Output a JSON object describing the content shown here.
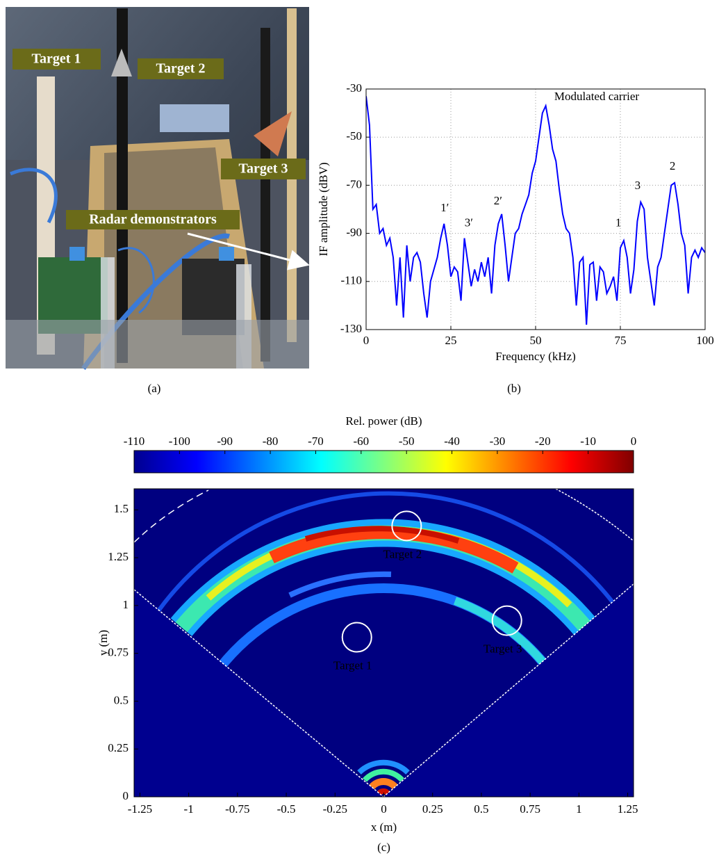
{
  "photo": {
    "labels": [
      "Target 1",
      "Target 2",
      "Target 3",
      "Radar demonstrators"
    ],
    "caption": "(a)"
  },
  "chart_data": [
    {
      "type": "line",
      "caption": "(b)",
      "xlabel": "Frequency (kHz)",
      "ylabel": "IF amplitude (dBV)",
      "x": [
        0,
        1,
        2,
        3,
        4,
        5,
        6,
        7,
        8,
        9,
        10,
        11,
        12,
        13,
        14,
        15,
        16,
        17,
        18,
        19,
        20,
        21,
        22,
        23,
        24,
        25,
        26,
        27,
        28,
        29,
        30,
        31,
        32,
        33,
        34,
        35,
        36,
        37,
        38,
        39,
        40,
        41,
        42,
        43,
        44,
        45,
        46,
        47,
        48,
        49,
        50,
        51,
        52,
        53,
        54,
        55,
        56,
        57,
        58,
        59,
        60,
        61,
        62,
        63,
        64,
        65,
        66,
        67,
        68,
        69,
        70,
        71,
        72,
        73,
        74,
        75,
        76,
        77,
        78,
        79,
        80,
        81,
        82,
        83,
        84,
        85,
        86,
        87,
        88,
        89,
        90,
        91,
        92,
        93,
        94,
        95,
        96,
        97,
        98,
        99,
        100
      ],
      "series": [
        {
          "color": "#0000ff",
          "values": [
            -33,
            -45,
            -80,
            -78,
            -90,
            -88,
            -95,
            -92,
            -100,
            -120,
            -100,
            -125,
            -95,
            -110,
            -100,
            -98,
            -102,
            -115,
            -125,
            -110,
            -105,
            -100,
            -92,
            -86,
            -95,
            -108,
            -104,
            -106,
            -118,
            -92,
            -102,
            -112,
            -105,
            -110,
            -102,
            -108,
            -100,
            -115,
            -95,
            -86,
            -82,
            -95,
            -110,
            -100,
            -90,
            -88,
            -82,
            -78,
            -74,
            -65,
            -60,
            -50,
            -40,
            -37,
            -45,
            -55,
            -60,
            -72,
            -82,
            -88,
            -90,
            -100,
            -120,
            -102,
            -100,
            -128,
            -103,
            -102,
            -118,
            -104,
            -106,
            -115,
            -112,
            -108,
            -118,
            -96,
            -93,
            -100,
            -115,
            -105,
            -85,
            -77,
            -80,
            -100,
            -110,
            -120,
            -104,
            -100,
            -90,
            -80,
            -70,
            -69,
            -78,
            -90,
            -95,
            -115,
            -100,
            -97,
            -100,
            -96,
            -98
          ]
        }
      ],
      "xlim": [
        0,
        100
      ],
      "xticks": [
        0,
        25,
        50,
        75,
        100
      ],
      "ylim": [
        -130,
        -30
      ],
      "yticks": [
        -30,
        -50,
        -70,
        -90,
        -110,
        -130
      ],
      "grid": true,
      "annotations": [
        {
          "text": "Modulated carrier",
          "x": 55.5,
          "y": -33.5
        },
        {
          "text": "1′",
          "x": 23.2,
          "y": -79.7
        },
        {
          "text": "3′",
          "x": 30.3,
          "y": -86
        },
        {
          "text": "2′",
          "x": 38.9,
          "y": -76.8
        },
        {
          "text": "1",
          "x": 74.4,
          "y": -86
        },
        {
          "text": "3",
          "x": 80.1,
          "y": -70.5
        },
        {
          "text": "2",
          "x": 90.4,
          "y": -62.4
        }
      ]
    },
    {
      "type": "heatmap",
      "caption": "(c)",
      "xlabel": "x (m)",
      "ylabel": "y (m)",
      "xlim": [
        -1.28,
        1.28
      ],
      "xticks": [
        -1.25,
        -1,
        -0.75,
        -0.5,
        -0.25,
        0,
        0.25,
        0.5,
        0.75,
        1,
        1.25
      ],
      "ylim": [
        0,
        1.61
      ],
      "yticks": [
        0,
        0.25,
        0.5,
        0.75,
        1,
        1.25,
        1.5
      ],
      "colorbar": {
        "label": "Rel. power (dB)",
        "lim": [
          -110,
          0
        ],
        "ticks": [
          -110,
          -100,
          -90,
          -80,
          -70,
          -60,
          -50,
          -40,
          -30,
          -20,
          -10,
          0
        ],
        "colormap": "jet"
      },
      "annotations": [
        {
          "text": "Target 2",
          "x": 0.117,
          "y": 1.416
        },
        {
          "text": "Target 1",
          "x": -0.138,
          "y": 0.834
        },
        {
          "text": "Target 3",
          "x": 0.631,
          "y": 0.921
        }
      ]
    }
  ]
}
